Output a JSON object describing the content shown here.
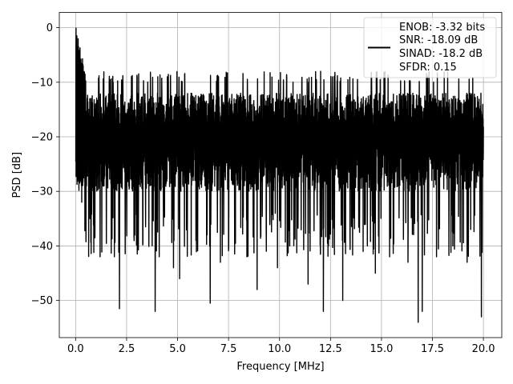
{
  "chart_data": {
    "type": "line",
    "xlabel": "Frequency [MHz]",
    "ylabel": "PSD [dB]",
    "xlim": [
      -0.8,
      20.9
    ],
    "ylim": [
      -56.8,
      2.8
    ],
    "xticks": [
      0.0,
      2.5,
      5.0,
      7.5,
      10.0,
      12.5,
      15.0,
      17.5,
      20.0
    ],
    "xtick_labels": [
      "0.0",
      "2.5",
      "5.0",
      "7.5",
      "10.0",
      "12.5",
      "15.0",
      "17.5",
      "20.0"
    ],
    "yticks": [
      0,
      -10,
      -20,
      -30,
      -40,
      -50
    ],
    "ytick_labels": [
      "0",
      "−10",
      "−20",
      "−30",
      "−40",
      "−50"
    ],
    "grid": true,
    "legend_position": "top-right",
    "series": [
      {
        "name": "ENOB: -3.32 bits\nSNR: -18.09 dB\nSINAD: -18.2 dB\nSFDR: 0.15",
        "legend_lines": [
          "ENOB: -3.32 bits",
          "SNR: -18.09 dB",
          "SINAD: -18.2 dB",
          "SFDR: 0.15"
        ],
        "color": "#000000",
        "x_range": [
          0.0,
          20.0
        ],
        "peak": {
          "x": 0.02,
          "y": 0.0
        },
        "typical_band": [
          -30,
          -12
        ],
        "notable_dips": [
          {
            "x": 0.3,
            "y": -32
          },
          {
            "x": 0.7,
            "y": -35
          },
          {
            "x": 1.2,
            "y": -42
          },
          {
            "x": 1.9,
            "y": -42
          },
          {
            "x": 2.15,
            "y": -51.5
          },
          {
            "x": 2.9,
            "y": -38
          },
          {
            "x": 3.9,
            "y": -52
          },
          {
            "x": 4.1,
            "y": -42
          },
          {
            "x": 4.8,
            "y": -44
          },
          {
            "x": 5.1,
            "y": -46
          },
          {
            "x": 5.9,
            "y": -39
          },
          {
            "x": 6.6,
            "y": -50.5
          },
          {
            "x": 7.1,
            "y": -43
          },
          {
            "x": 8.4,
            "y": -42
          },
          {
            "x": 8.9,
            "y": -48
          },
          {
            "x": 9.9,
            "y": -44
          },
          {
            "x": 10.5,
            "y": -40
          },
          {
            "x": 11.4,
            "y": -47
          },
          {
            "x": 12.0,
            "y": -40
          },
          {
            "x": 12.15,
            "y": -52
          },
          {
            "x": 12.4,
            "y": -40
          },
          {
            "x": 13.1,
            "y": -50
          },
          {
            "x": 14.1,
            "y": -41
          },
          {
            "x": 14.7,
            "y": -45
          },
          {
            "x": 15.4,
            "y": -42
          },
          {
            "x": 16.3,
            "y": -43
          },
          {
            "x": 16.8,
            "y": -54
          },
          {
            "x": 17.0,
            "y": -52
          },
          {
            "x": 17.7,
            "y": -42
          },
          {
            "x": 18.5,
            "y": -40
          },
          {
            "x": 19.2,
            "y": -43
          },
          {
            "x": 19.9,
            "y": -53
          }
        ]
      }
    ]
  }
}
